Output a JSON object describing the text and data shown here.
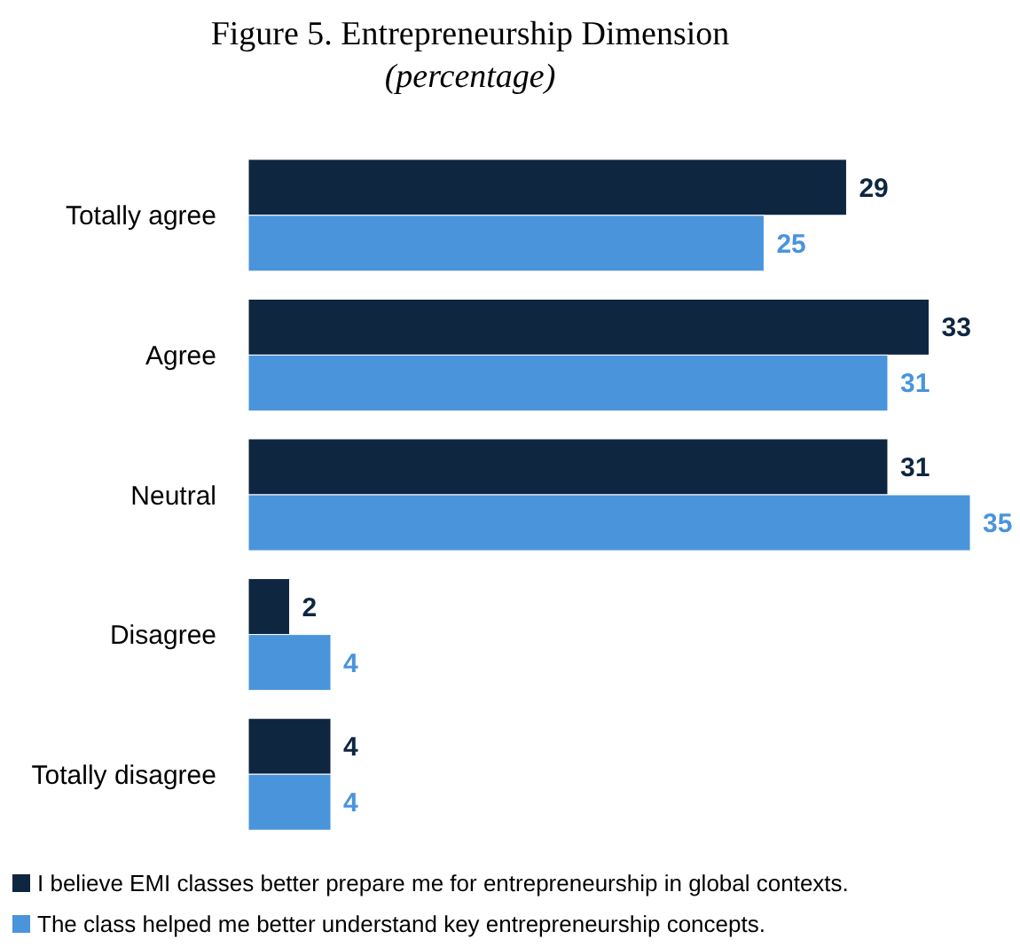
{
  "chart_data": {
    "type": "bar",
    "orientation": "horizontal",
    "title": "Figure 5. Entrepreneurship Dimension",
    "subtitle": "(percentage)",
    "categories": [
      "Totally agree",
      "Agree",
      "Neutral",
      "Disagree",
      "Totally disagree"
    ],
    "series": [
      {
        "name": "I believe EMI classes better prepare me for entrepreneurship in global contexts.",
        "color": "#0f2640",
        "values": [
          29,
          33,
          31,
          2,
          4
        ]
      },
      {
        "name": "The class helped me better understand key entrepreneurship concepts.",
        "color": "#4a94dc",
        "values": [
          25,
          31,
          35,
          4,
          4
        ]
      }
    ],
    "data_labels": true,
    "legend": "bottom",
    "grid": false
  }
}
